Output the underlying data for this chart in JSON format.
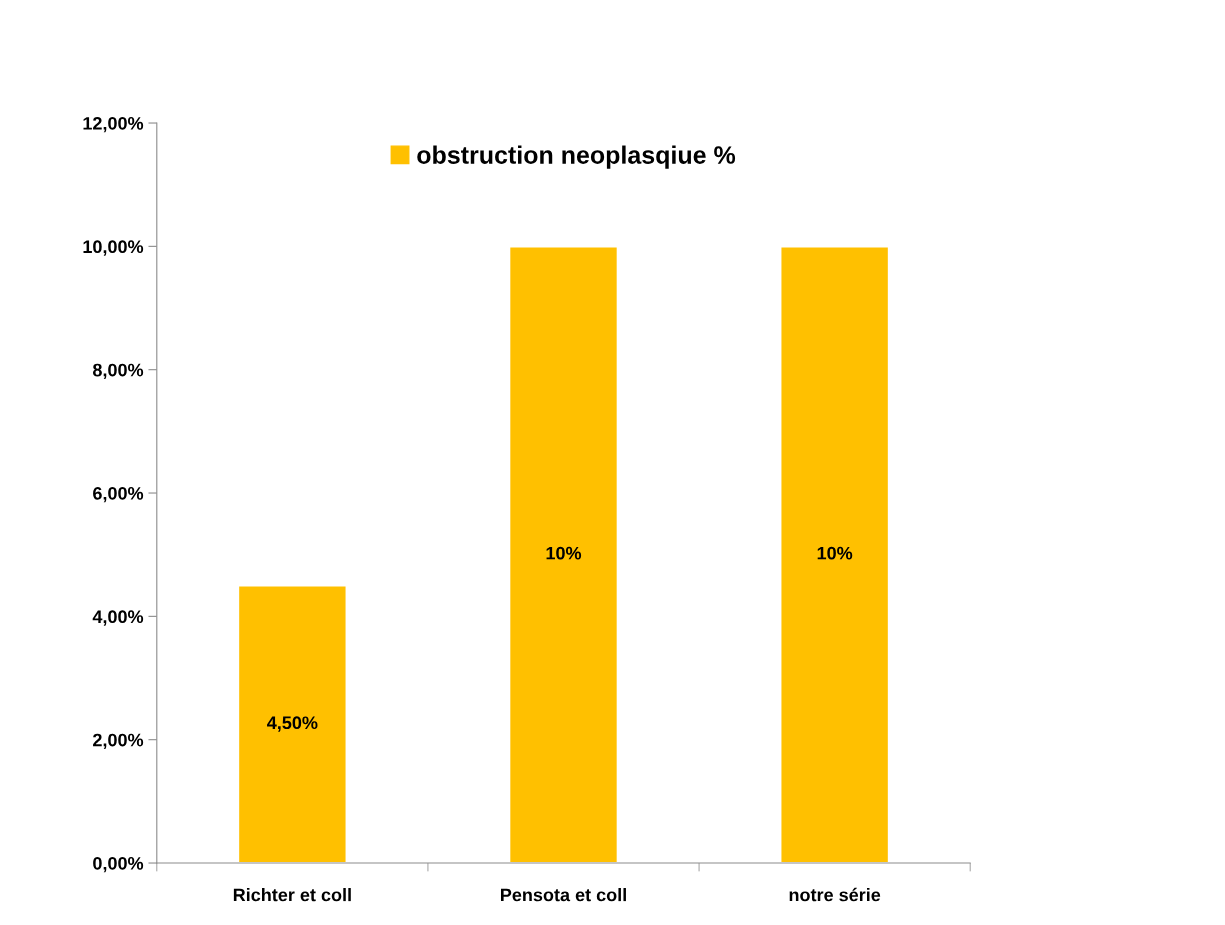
{
  "chart_data": {
    "type": "bar",
    "categories": [
      "Richter et coll",
      "Pensota et coll",
      "notre série"
    ],
    "series": [
      {
        "name": "obstruction neoplasqiue %",
        "color": "#ffc000",
        "values": [
          4.5,
          10,
          10
        ],
        "value_labels": [
          "4,50%",
          "10%",
          "10%"
        ]
      }
    ],
    "ylim": [
      0,
      12
    ],
    "yticks": [
      {
        "value": 0,
        "label": "0,00%"
      },
      {
        "value": 2,
        "label": "2,00%"
      },
      {
        "value": 4,
        "label": "4,00%"
      },
      {
        "value": 6,
        "label": "6,00%"
      },
      {
        "value": 8,
        "label": "8,00%"
      },
      {
        "value": 10,
        "label": "10,00%"
      },
      {
        "value": 12,
        "label": "12,00%"
      }
    ],
    "grid": false,
    "legend": "top"
  }
}
